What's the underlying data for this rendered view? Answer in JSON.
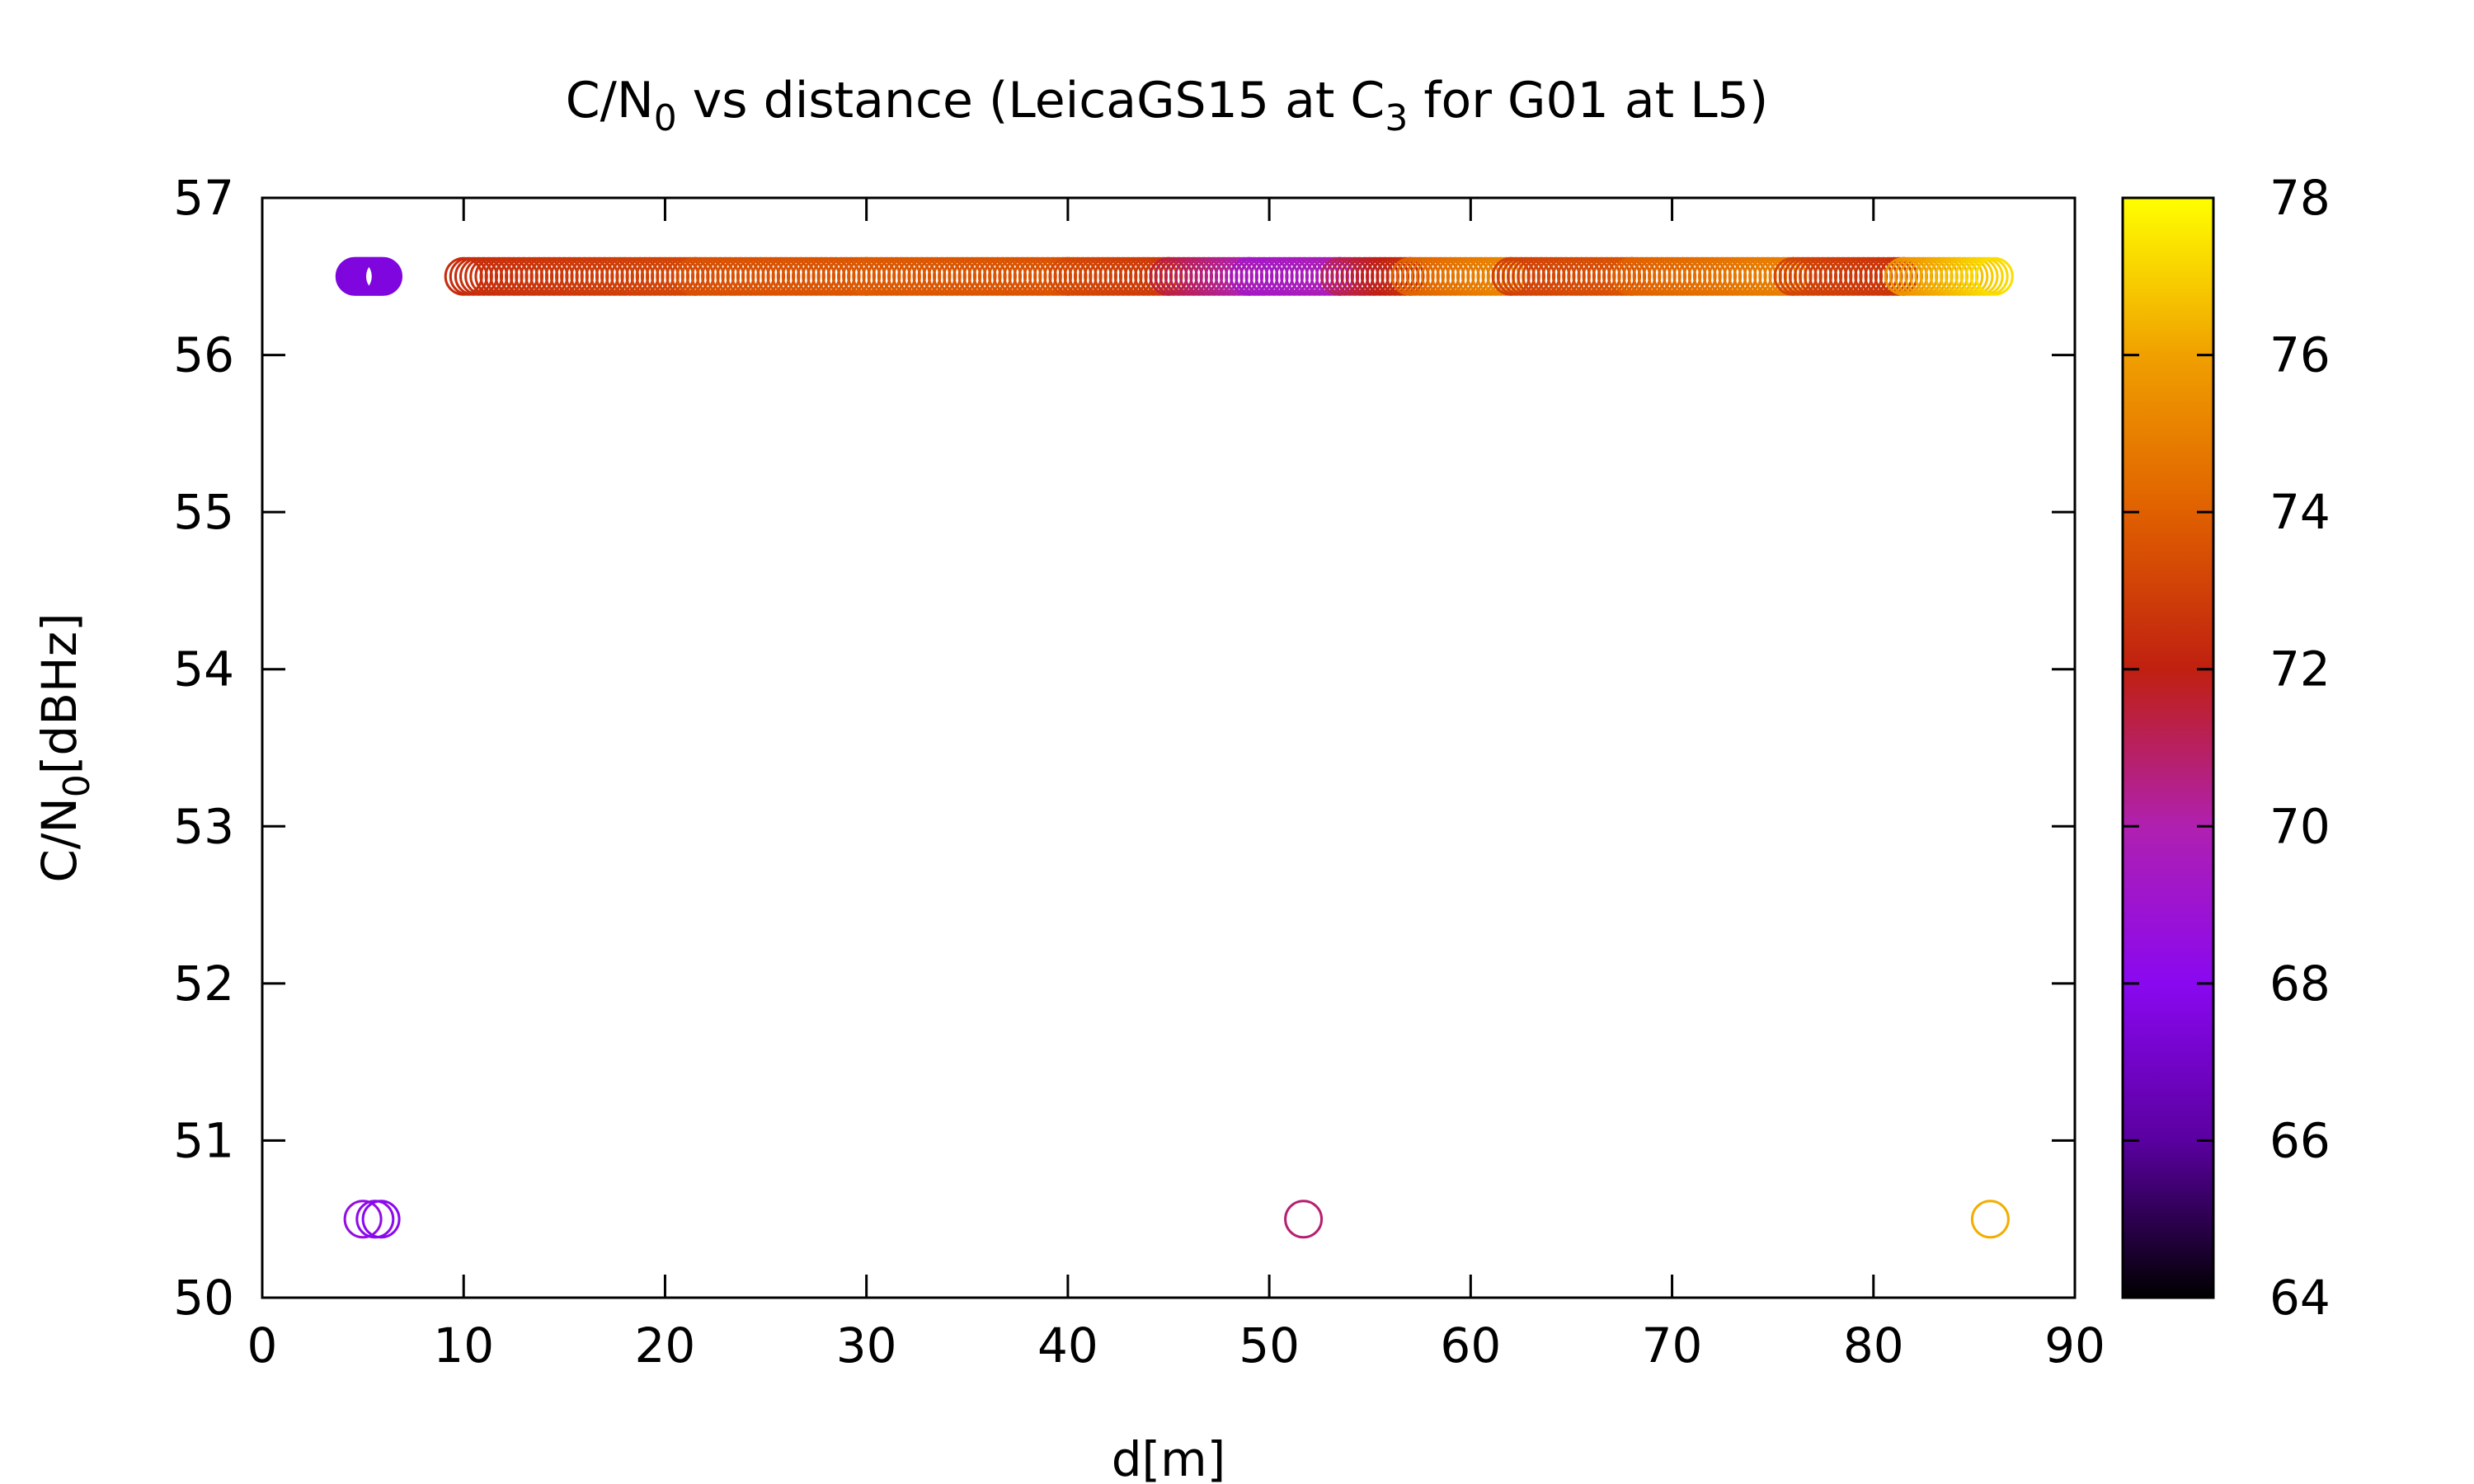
{
  "chart_data": {
    "type": "scatter",
    "title": {
      "part1": "C/N",
      "sub1": "0",
      "part2": " vs distance (LeicaGS15 at C",
      "sub2": "3",
      "part3": " for G01 at L5)"
    },
    "xlabel": "d[m]",
    "ylabel": {
      "main": "C/N",
      "sub": "0",
      "rest": "[dBHz]"
    },
    "xlim": [
      0,
      90
    ],
    "ylim": [
      50,
      57
    ],
    "xticks": [
      0,
      10,
      20,
      30,
      40,
      50,
      60,
      70,
      80,
      90
    ],
    "yticks": [
      50,
      51,
      52,
      53,
      54,
      55,
      56,
      57
    ],
    "grid": false,
    "marker": "open-circle",
    "colorbar": {
      "min": 64,
      "max": 78,
      "ticks": [
        64,
        66,
        68,
        70,
        72,
        74,
        76,
        78
      ],
      "palette": [
        "#000000",
        "#5a00a0",
        "#8a08f0",
        "#b020b0",
        "#c02010",
        "#e06000",
        "#f0a000",
        "#ffff00"
      ]
    },
    "segments": [
      {
        "x_start": 4.6,
        "x_end": 6.0,
        "step": 0.1,
        "y": 56.5,
        "c_start": 67.5,
        "c_end": 67.6
      },
      {
        "x_start": 10.0,
        "x_end": 21.5,
        "step": 0.25,
        "y": 56.5,
        "c_start": 72.4,
        "c_end": 73.2
      },
      {
        "x_start": 21.5,
        "x_end": 30.0,
        "step": 0.25,
        "y": 56.5,
        "c_start": 73.5,
        "c_end": 73.7
      },
      {
        "x_start": 30.0,
        "x_end": 40.0,
        "step": 0.25,
        "y": 56.5,
        "c_start": 73.8,
        "c_end": 73.6
      },
      {
        "x_start": 40.0,
        "x_end": 45.0,
        "step": 0.25,
        "y": 56.5,
        "c_start": 73.3,
        "c_end": 72.8
      },
      {
        "x_start": 45.0,
        "x_end": 49.0,
        "step": 0.25,
        "y": 56.5,
        "c_start": 71.5,
        "c_end": 70.0
      },
      {
        "x_start": 49.0,
        "x_end": 53.5,
        "step": 0.25,
        "y": 56.5,
        "c_start": 69.3,
        "c_end": 69.8
      },
      {
        "x_start": 53.5,
        "x_end": 57.0,
        "step": 0.25,
        "y": 56.5,
        "c_start": 71.0,
        "c_end": 72.5
      },
      {
        "x_start": 57.0,
        "x_end": 62.0,
        "step": 0.25,
        "y": 56.5,
        "c_start": 74.0,
        "c_end": 75.2
      },
      {
        "x_start": 62.0,
        "x_end": 68.0,
        "step": 0.25,
        "y": 56.5,
        "c_start": 73.0,
        "c_end": 73.6
      },
      {
        "x_start": 68.0,
        "x_end": 76.0,
        "step": 0.25,
        "y": 56.5,
        "c_start": 74.0,
        "c_end": 75.0
      },
      {
        "x_start": 76.0,
        "x_end": 81.5,
        "step": 0.25,
        "y": 56.5,
        "c_start": 73.2,
        "c_end": 72.6
      },
      {
        "x_start": 81.5,
        "x_end": 86.0,
        "step": 0.25,
        "y": 56.5,
        "c_start": 75.5,
        "c_end": 77.3
      }
    ],
    "points": [
      {
        "x": 5.0,
        "y": 50.5,
        "c": 68.5
      },
      {
        "x": 5.6,
        "y": 50.5,
        "c": 68.2
      },
      {
        "x": 5.9,
        "y": 50.5,
        "c": 68.0
      },
      {
        "x": 51.7,
        "y": 50.5,
        "c": 70.8
      },
      {
        "x": 85.8,
        "y": 50.5,
        "c": 76.3
      }
    ]
  }
}
